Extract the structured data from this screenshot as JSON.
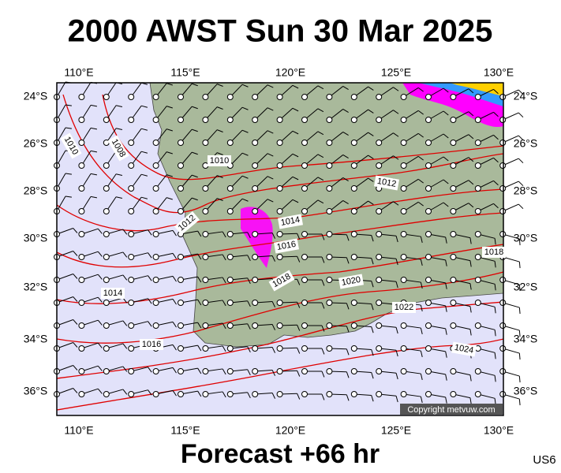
{
  "header": {
    "title": "2000 AWST Sun 30 Mar 2025"
  },
  "axes": {
    "lon_labels": [
      "110°E",
      "115°E",
      "120°E",
      "125°E",
      "130°E"
    ],
    "lat_labels": [
      "24°S",
      "26°S",
      "28°S",
      "30°S",
      "32°S",
      "34°S",
      "36°S"
    ]
  },
  "isobar_labels": [
    "1010",
    "1008",
    "1010",
    "1012",
    "1012",
    "1014",
    "1016",
    "1018",
    "1020",
    "1022",
    "1024",
    "1014",
    "1016",
    "1018"
  ],
  "copyright": "Copyright metvuw.com",
  "footer": {
    "forecast": "Forecast +66 hr",
    "code": "US6"
  }
}
